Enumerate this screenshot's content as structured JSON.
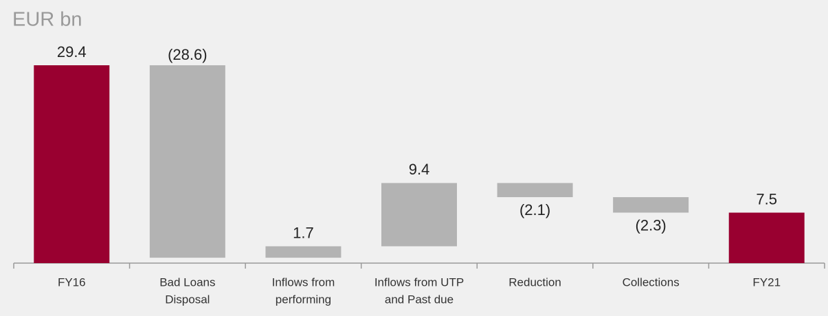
{
  "chart_data": {
    "type": "waterfall",
    "title": "EUR bn",
    "categories": [
      [
        "FY16"
      ],
      [
        "Bad Loans",
        "Disposal"
      ],
      [
        "Inflows from",
        "performing"
      ],
      [
        "Inflows from UTP",
        "and Past due"
      ],
      [
        "Reduction"
      ],
      [
        "Collections"
      ],
      [
        "FY21"
      ]
    ],
    "values": [
      29.4,
      -28.6,
      1.7,
      9.4,
      -2.1,
      -2.3,
      7.5
    ],
    "value_labels": [
      "29.4",
      "(28.6)",
      "1.7",
      "9.4",
      "(2.1)",
      "(2.3)",
      "7.5"
    ],
    "measure": [
      "total",
      "relative",
      "relative",
      "relative",
      "relative",
      "relative",
      "total"
    ],
    "colors": [
      "#990030",
      "#b3b3b3",
      "#b3b3b3",
      "#b3b3b3",
      "#b3b3b3",
      "#b3b3b3",
      "#990030"
    ]
  }
}
